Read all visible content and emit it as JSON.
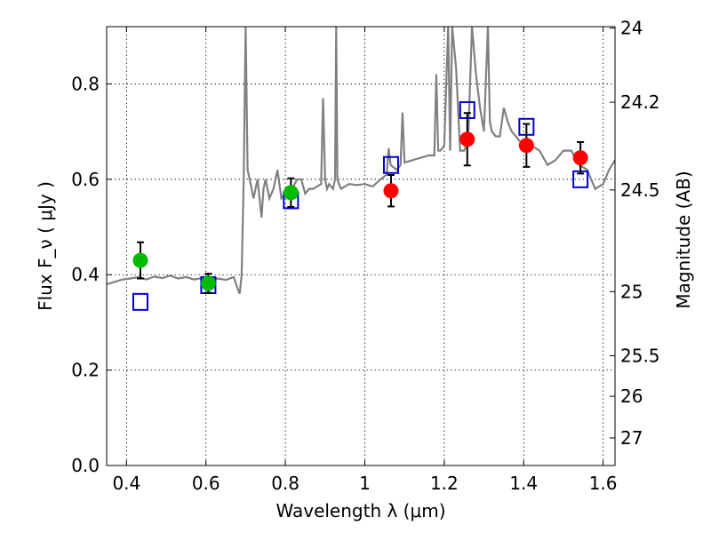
{
  "chart_data": {
    "type": "scatter",
    "xlabel": "Wavelength  λ (μm)",
    "ylabel": "Flux  F_ν  ( μJy )",
    "y2label": "Magnitude (AB)",
    "xlim": [
      0.35,
      1.63
    ],
    "ylim": [
      0.0,
      0.92
    ],
    "grid": true,
    "x_ticks": [
      0.4,
      0.6,
      0.8,
      1.0,
      1.2,
      1.4,
      1.6
    ],
    "x_tick_labels": [
      "0.4",
      "0.6",
      "0.8",
      "1",
      "1.2",
      "1.4",
      "1.6"
    ],
    "y_ticks": [
      0.0,
      0.2,
      0.4,
      0.6,
      0.8
    ],
    "y_tick_labels": [
      "0.0",
      "0.2",
      "0.4",
      "0.6",
      "0.8"
    ],
    "y2_ticks": [
      {
        "label": "24",
        "flux": 0.917
      },
      {
        "label": "24.2",
        "flux": 0.7615
      },
      {
        "label": "24.5",
        "flux": 0.5777
      },
      {
        "label": "25",
        "flux": 0.3645
      },
      {
        "label": "25.5",
        "flux": 0.23
      },
      {
        "label": "26",
        "flux": 0.1451
      },
      {
        "label": "27",
        "flux": 0.0578
      }
    ],
    "series": [
      {
        "marker": "circle",
        "color": "#00bb00",
        "points": [
          {
            "x": 0.435,
            "y": 0.43,
            "err": 0.038
          },
          {
            "x": 0.606,
            "y": 0.382,
            "err": 0.02
          },
          {
            "x": 0.814,
            "y": 0.572,
            "err": 0.03
          }
        ]
      },
      {
        "marker": "circle",
        "color": "#ff0000",
        "points": [
          {
            "x": 1.066,
            "y": 0.576,
            "err": 0.033
          },
          {
            "x": 1.258,
            "y": 0.684,
            "err": 0.055
          },
          {
            "x": 1.407,
            "y": 0.671,
            "err": 0.045
          },
          {
            "x": 1.543,
            "y": 0.645,
            "err": 0.033
          }
        ]
      },
      {
        "marker": "open-square",
        "color": "#0000cc",
        "points": [
          {
            "x": 0.435,
            "y": 0.343
          },
          {
            "x": 0.606,
            "y": 0.378
          },
          {
            "x": 0.814,
            "y": 0.556
          },
          {
            "x": 1.066,
            "y": 0.63
          },
          {
            "x": 1.258,
            "y": 0.745
          },
          {
            "x": 1.407,
            "y": 0.71
          },
          {
            "x": 1.543,
            "y": 0.6
          }
        ]
      },
      {
        "marker": "line",
        "color": "#808080",
        "x": [
          0.35,
          0.37,
          0.39,
          0.41,
          0.43,
          0.45,
          0.47,
          0.49,
          0.51,
          0.53,
          0.55,
          0.57,
          0.59,
          0.61,
          0.63,
          0.65,
          0.67,
          0.68,
          0.685,
          0.69,
          0.695,
          0.7,
          0.705,
          0.71,
          0.715,
          0.72,
          0.73,
          0.74,
          0.745,
          0.75,
          0.76,
          0.77,
          0.78,
          0.79,
          0.8,
          0.81,
          0.82,
          0.83,
          0.84,
          0.85,
          0.86,
          0.87,
          0.88,
          0.89,
          0.895,
          0.9,
          0.905,
          0.91,
          0.92,
          0.925,
          0.928,
          0.931,
          0.935,
          0.94,
          0.96,
          0.98,
          1.0,
          1.02,
          1.04,
          1.055,
          1.06,
          1.065,
          1.08,
          1.09,
          1.095,
          1.1,
          1.12,
          1.14,
          1.16,
          1.175,
          1.18,
          1.185,
          1.19,
          1.2,
          1.21,
          1.215,
          1.22,
          1.23,
          1.24,
          1.25,
          1.26,
          1.27,
          1.28,
          1.29,
          1.3,
          1.31,
          1.315,
          1.32,
          1.33,
          1.34,
          1.35,
          1.36,
          1.37,
          1.38,
          1.4,
          1.42,
          1.44,
          1.46,
          1.48,
          1.5,
          1.52,
          1.54,
          1.56,
          1.58,
          1.6,
          1.615,
          1.63
        ],
        "y": [
          0.38,
          0.385,
          0.39,
          0.392,
          0.395,
          0.39,
          0.396,
          0.393,
          0.398,
          0.392,
          0.395,
          0.39,
          0.393,
          0.388,
          0.392,
          0.389,
          0.395,
          0.37,
          0.36,
          0.4,
          0.6,
          0.92,
          0.62,
          0.6,
          0.58,
          0.56,
          0.6,
          0.52,
          0.58,
          0.6,
          0.56,
          0.58,
          0.62,
          0.56,
          0.57,
          0.58,
          0.585,
          0.6,
          0.6,
          0.57,
          0.58,
          0.58,
          0.585,
          0.59,
          0.77,
          0.6,
          0.58,
          0.59,
          0.58,
          0.6,
          0.92,
          0.6,
          0.59,
          0.58,
          0.59,
          0.588,
          0.59,
          0.585,
          0.6,
          0.61,
          0.665,
          0.63,
          0.62,
          0.63,
          0.74,
          0.635,
          0.64,
          0.645,
          0.65,
          0.65,
          0.82,
          0.66,
          0.66,
          0.67,
          0.92,
          0.66,
          0.92,
          0.83,
          0.66,
          0.66,
          0.68,
          0.92,
          0.82,
          0.75,
          0.7,
          0.92,
          0.72,
          0.7,
          0.69,
          0.69,
          0.75,
          0.72,
          0.7,
          0.69,
          0.67,
          0.67,
          0.66,
          0.63,
          0.64,
          0.66,
          0.66,
          0.63,
          0.62,
          0.58,
          0.59,
          0.62,
          0.64
        ]
      }
    ]
  }
}
